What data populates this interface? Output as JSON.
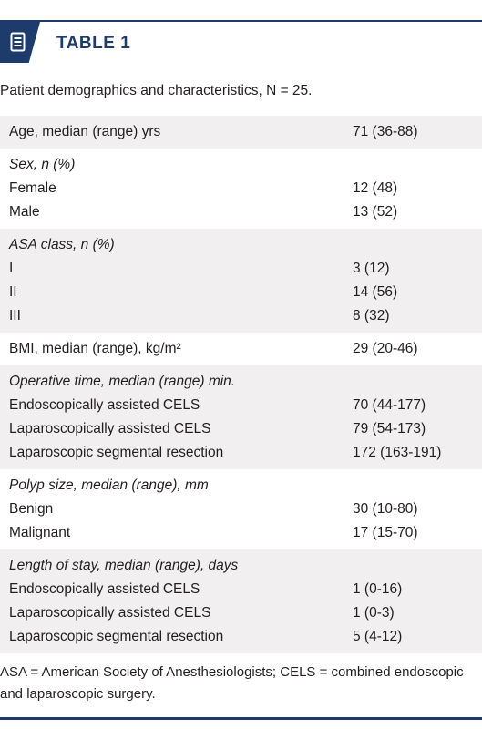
{
  "header": {
    "title": "TABLE 1",
    "icon": "document-icon",
    "accent_color": "#1d3b6b"
  },
  "caption": "Patient demographics and characteristics, N = 25.",
  "groups": [
    {
      "rows": [
        {
          "label": "Age, median (range) yrs",
          "value": "71 (36-88)"
        }
      ]
    },
    {
      "heading": "Sex, n (%)",
      "rows": [
        {
          "label": "Female",
          "value": "12 (48)"
        },
        {
          "label": "Male",
          "value": "13 (52)"
        }
      ]
    },
    {
      "heading": "ASA class, n (%)",
      "rows": [
        {
          "label": "I",
          "value": "3 (12)"
        },
        {
          "label": "II",
          "value": "14 (56)"
        },
        {
          "label": "III",
          "value": "8 (32)"
        }
      ]
    },
    {
      "rows": [
        {
          "label": "BMI, median (range), kg/m²",
          "value": "29 (20-46)"
        }
      ]
    },
    {
      "heading": "Operative time, median (range) min.",
      "rows": [
        {
          "label": "Endoscopically assisted CELS",
          "value": "70 (44-177)"
        },
        {
          "label": "Laparoscopically assisted CELS",
          "value": "79 (54-173)"
        },
        {
          "label": "Laparoscopic segmental resection",
          "value": "172 (163-191)"
        }
      ]
    },
    {
      "heading": "Polyp size, median (range), mm",
      "rows": [
        {
          "label": "Benign",
          "value": "30 (10-80)"
        },
        {
          "label": "Malignant",
          "value": "17 (15-70)"
        }
      ]
    },
    {
      "heading": "Length of stay, median (range), days",
      "rows": [
        {
          "label": "Endoscopically assisted CELS",
          "value": "1 (0-16)"
        },
        {
          "label": "Laparoscopically assisted CELS",
          "value": "1 (0-3)"
        },
        {
          "label": "Laparoscopic segmental resection",
          "value": "5 (4-12)"
        }
      ]
    }
  ],
  "footnote_line1": "ASA = American Society of Anesthesiologists; CELS = combined endoscopic",
  "footnote_line2": "and laparoscopic surgery."
}
